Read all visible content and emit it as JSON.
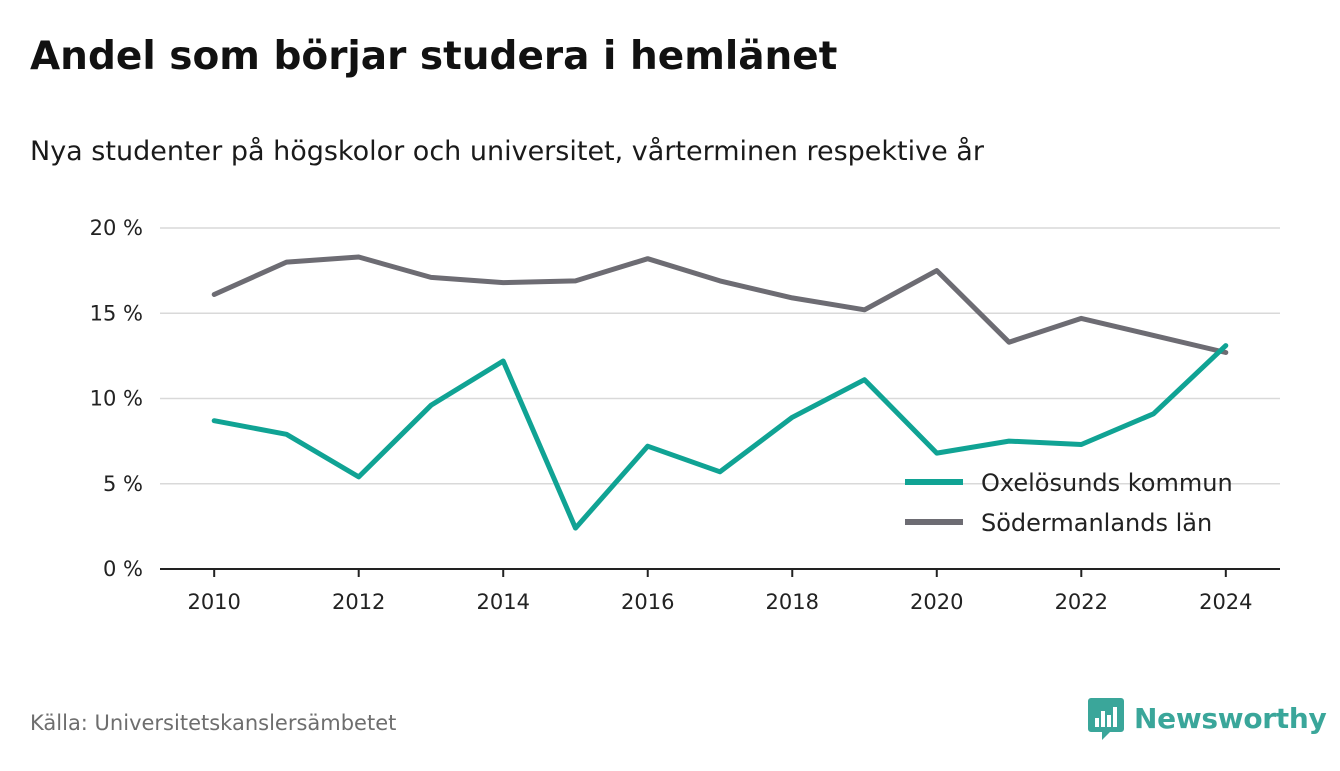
{
  "header": {
    "title": "Andel som börjar studera i hemlänet",
    "subtitle": "Nya studenter på högskolor och universitet, vårterminen respektive år"
  },
  "footer": {
    "source": "Källa: Universitetskanslersämbetet",
    "brand": "Newsworthy",
    "brand_icon": "bar-chart-speech-bubble-icon",
    "brand_color": "#3aa69a"
  },
  "chart_data": {
    "type": "line",
    "x": [
      2010,
      2011,
      2012,
      2013,
      2014,
      2015,
      2016,
      2017,
      2018,
      2019,
      2020,
      2021,
      2022,
      2023,
      2024
    ],
    "series": [
      {
        "name": "Oxelösunds kommun",
        "color": "#10a394",
        "values": [
          8.7,
          7.9,
          5.4,
          9.6,
          12.2,
          2.4,
          7.2,
          5.7,
          8.9,
          11.1,
          6.8,
          7.5,
          7.3,
          9.1,
          13.1
        ]
      },
      {
        "name": "Södermanlands län",
        "color": "#6d6c73",
        "values": [
          16.1,
          18.0,
          18.3,
          17.1,
          16.8,
          16.9,
          18.2,
          16.9,
          15.9,
          15.2,
          17.5,
          13.3,
          14.7,
          13.7,
          12.7
        ]
      }
    ],
    "x_ticks": [
      2010,
      2012,
      2014,
      2016,
      2018,
      2020,
      2022,
      2024
    ],
    "y_ticks": [
      {
        "value": 0,
        "label": "0 %"
      },
      {
        "value": 5,
        "label": "5 %"
      },
      {
        "value": 10,
        "label": "10 %"
      },
      {
        "value": 15,
        "label": "15 %"
      },
      {
        "value": 20,
        "label": "20 %"
      }
    ],
    "ylim": [
      0,
      20
    ],
    "xlim": [
      2009.25,
      2024.75
    ],
    "grid": true,
    "legend_position": "lower-right"
  }
}
